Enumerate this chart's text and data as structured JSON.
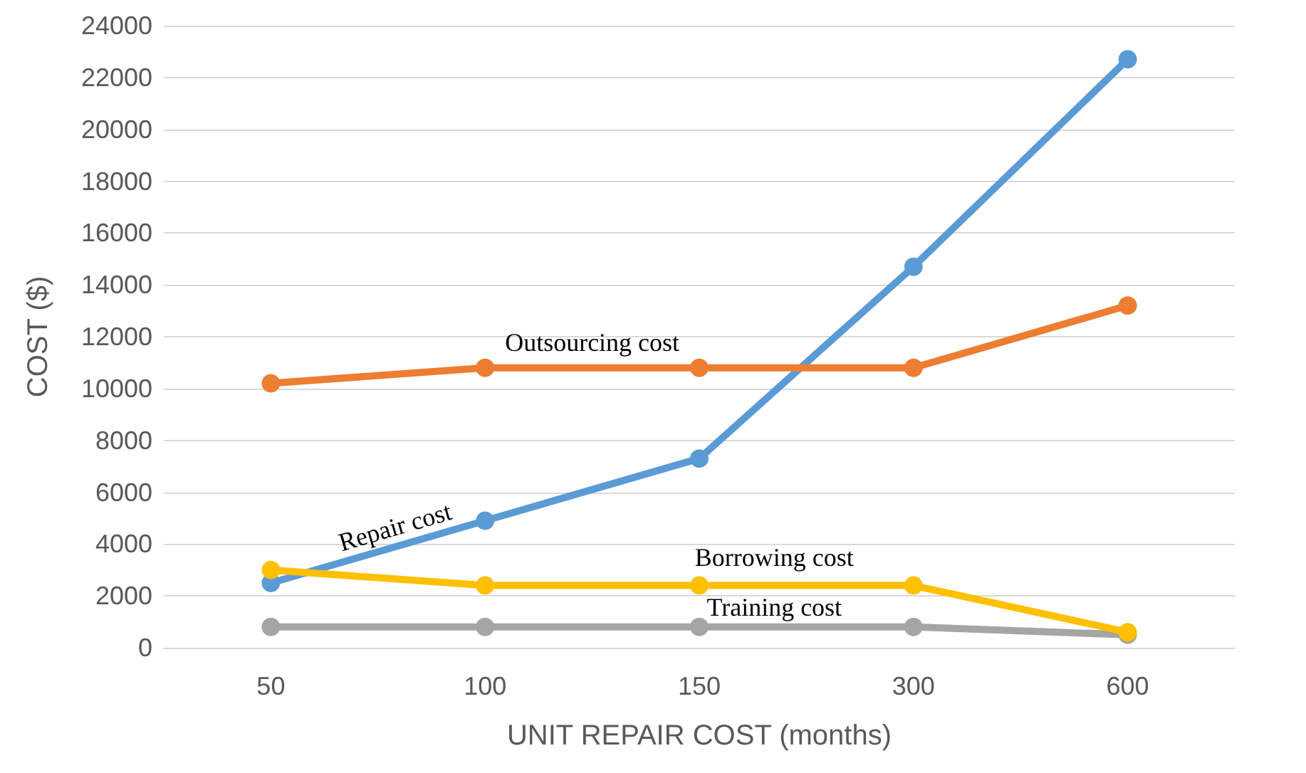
{
  "chart_data": {
    "type": "line",
    "xlabel": "UNIT REPAIR COST (months)",
    "ylabel": "COST ($)",
    "categories": [
      "50",
      "100",
      "150",
      "300",
      "600"
    ],
    "series": [
      {
        "name": "Repair cost",
        "color": "#5b9bd5",
        "values": [
          2500,
          4900,
          7300,
          14700,
          22700
        ]
      },
      {
        "name": "Outsourcing cost",
        "color": "#ed7d31",
        "values": [
          10200,
          10800,
          10800,
          10800,
          13200
        ]
      },
      {
        "name": "Borrowing cost",
        "color": "#ffc000",
        "values": [
          3000,
          2400,
          2400,
          2400,
          600
        ]
      },
      {
        "name": "Training cost",
        "color": "#a5a5a5",
        "values": [
          800,
          800,
          800,
          800,
          500
        ]
      }
    ],
    "ylim": [
      0,
      24000
    ],
    "yticks": [
      0,
      2000,
      4000,
      6000,
      8000,
      10000,
      12000,
      14000,
      16000,
      18000,
      20000,
      22000,
      24000
    ],
    "grid": "y",
    "legend": false,
    "marker": "circle",
    "line_style": "solid"
  }
}
